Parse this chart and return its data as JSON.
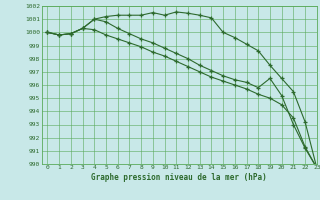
{
  "x": [
    0,
    1,
    2,
    3,
    4,
    5,
    6,
    7,
    8,
    9,
    10,
    11,
    12,
    13,
    14,
    15,
    16,
    17,
    18,
    19,
    20,
    21,
    22,
    23
  ],
  "line1": [
    1000.0,
    999.8,
    999.9,
    1000.3,
    1001.0,
    1001.2,
    1001.3,
    1001.3,
    1001.3,
    1001.5,
    1001.3,
    1001.55,
    1001.45,
    1001.3,
    1001.1,
    1000.0,
    999.6,
    999.1,
    998.6,
    997.5,
    996.5,
    995.5,
    993.2,
    989.7
  ],
  "line2": [
    1000.0,
    999.8,
    999.9,
    1000.3,
    1001.0,
    1000.8,
    1000.3,
    999.9,
    999.5,
    999.2,
    998.8,
    998.4,
    998.0,
    997.5,
    997.1,
    996.7,
    996.4,
    996.2,
    995.8,
    996.5,
    995.2,
    993.0,
    991.2,
    989.7
  ],
  "line3": [
    1000.0,
    999.8,
    999.9,
    1000.3,
    1000.2,
    999.8,
    999.5,
    999.2,
    998.9,
    998.5,
    998.2,
    997.8,
    997.4,
    997.0,
    996.6,
    996.3,
    996.0,
    995.7,
    995.3,
    995.0,
    994.5,
    993.5,
    991.3,
    989.7
  ],
  "line_color": "#2d6a2d",
  "bg_color": "#c8e8e8",
  "grid_color": "#5aaa5a",
  "xlabel": "Graphe pression niveau de la mer (hPa)",
  "ylim_min": 990,
  "ylim_max": 1002,
  "xlim_min": -0.5,
  "xlim_max": 23
}
